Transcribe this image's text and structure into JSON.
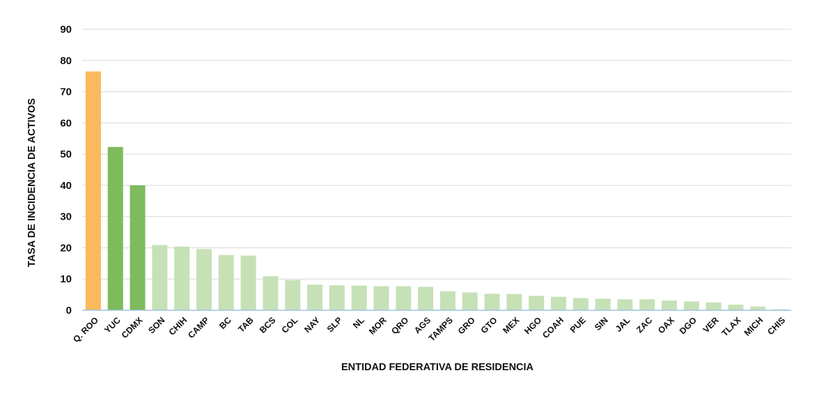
{
  "chart_data": {
    "type": "bar",
    "title": "",
    "xlabel": "ENTIDAD FEDERATIVA DE RESIDENCIA",
    "ylabel": "TASA DE INCIDENCIA DE ACTIVOS",
    "ylim": [
      0,
      90
    ],
    "yticks": [
      0,
      10,
      20,
      30,
      40,
      50,
      60,
      70,
      80,
      90
    ],
    "grid": true,
    "legend": "none",
    "categories": [
      "Q. ROO",
      "YUC",
      "CDMX",
      "SON",
      "CHIH",
      "CAMP",
      "BC",
      "TAB",
      "BCS",
      "COL",
      "NAY",
      "SLP",
      "NL",
      "MOR",
      "QRO",
      "AGS",
      "TAMPS",
      "GRO",
      "GTO",
      "MEX",
      "HGO",
      "COAH",
      "PUE",
      "SIN",
      "JAL",
      "ZAC",
      "OAX",
      "DGO",
      "VER",
      "TLAX",
      "MICH",
      "CHIS"
    ],
    "values": [
      76.5,
      52.3,
      40.0,
      20.9,
      20.4,
      19.6,
      17.7,
      17.5,
      10.9,
      9.7,
      8.2,
      8.0,
      7.9,
      7.7,
      7.7,
      7.5,
      6.1,
      5.7,
      5.3,
      5.2,
      4.6,
      4.3,
      3.9,
      3.7,
      3.5,
      3.5,
      3.1,
      2.8,
      2.5,
      1.8,
      1.2,
      0.3
    ],
    "colors": {
      "highlight_1": "#F8BA5C",
      "highlight_2": "#7DBB5C",
      "default": "#C6E1B6",
      "axis_line": "#9DC3E6",
      "grid": "#D9D9D9"
    },
    "bar_color_keys": [
      "highlight_1",
      "highlight_2",
      "highlight_2"
    ]
  }
}
